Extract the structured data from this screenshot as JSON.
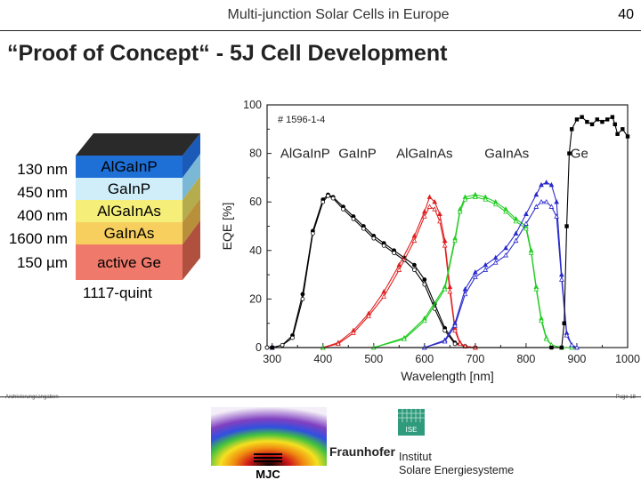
{
  "header": {
    "title": "Multi-junction Solar Cells in Europe",
    "page_number": "40"
  },
  "slide": {
    "title": "“Proof of Concept“ - 5J Cell Development"
  },
  "cell_stack": {
    "layers": [
      {
        "thickness": "130 nm",
        "material": "AlGaInP",
        "color": "#1e6fd6"
      },
      {
        "thickness": "450 nm",
        "material": "GaInP",
        "color": "#cfeefa"
      },
      {
        "thickness": "400 nm",
        "material": "AlGaInAs",
        "color": "#f5ef7a"
      },
      {
        "thickness": "1600 nm",
        "material": "GaInAs",
        "color": "#f7cf5e"
      },
      {
        "thickness": "150 µm",
        "material": "active Ge",
        "color": "#ef7a6c"
      }
    ],
    "caption": "1117-quint"
  },
  "chart_data": {
    "type": "line",
    "sample_label": "# 1596-1-4",
    "xlabel": "Wavelength [nm]",
    "ylabel": "EQE [%]",
    "xlim": [
      290,
      1000
    ],
    "ylim": [
      0,
      100
    ],
    "x_ticks": [
      300,
      400,
      500,
      600,
      700,
      800,
      900,
      1000
    ],
    "y_ticks": [
      0,
      20,
      40,
      60,
      80,
      100
    ],
    "grid": false,
    "junction_labels": [
      {
        "text": "AlGaInP",
        "x": 365,
        "y": 80
      },
      {
        "text": "GaInP",
        "x": 468,
        "y": 80
      },
      {
        "text": "AlGaInAs",
        "x": 600,
        "y": 80
      },
      {
        "text": "GaInAs",
        "x": 762,
        "y": 80
      },
      {
        "text": "Ge",
        "x": 905,
        "y": 80
      }
    ],
    "series": [
      {
        "color": "#000000",
        "marker": "circle",
        "x": [
          290,
          300,
          320,
          340,
          360,
          380,
          400,
          410,
          420,
          440,
          460,
          480,
          500,
          520,
          540,
          560,
          580,
          600,
          620,
          640,
          660,
          680,
          700
        ],
        "y": [
          0,
          0,
          1,
          5,
          22,
          48,
          61,
          63,
          62,
          58,
          54,
          50,
          46,
          43,
          40,
          37,
          34,
          28,
          18,
          8,
          2,
          0.5,
          0
        ]
      },
      {
        "color": "#000000",
        "marker": "circle-open",
        "x": [
          290,
          300,
          320,
          340,
          360,
          380,
          400,
          410,
          420,
          440,
          460,
          480,
          500,
          520,
          540,
          560,
          580,
          600,
          620,
          640,
          660,
          680,
          700
        ],
        "y": [
          0,
          0,
          1,
          4,
          20,
          47,
          60,
          62.5,
          61.5,
          57,
          53,
          49,
          45,
          42,
          39,
          36,
          32,
          26,
          16,
          7,
          1.5,
          0.5,
          0
        ]
      },
      {
        "color": "#e02020",
        "marker": "triangle",
        "x": [
          300,
          400,
          430,
          460,
          490,
          520,
          550,
          580,
          600,
          610,
          620,
          630,
          640,
          650,
          660,
          670,
          680,
          700
        ],
        "y": [
          0,
          0,
          2,
          7,
          14,
          23,
          34,
          46,
          56,
          62,
          60,
          55,
          44,
          25,
          8,
          2,
          0.5,
          0
        ]
      },
      {
        "color": "#e02020",
        "marker": "triangle-open",
        "x": [
          300,
          400,
          430,
          460,
          490,
          520,
          550,
          580,
          600,
          610,
          620,
          630,
          640,
          650,
          660,
          670,
          680,
          700
        ],
        "y": [
          0,
          0,
          1.5,
          6,
          13,
          21,
          32,
          44,
          54,
          58,
          57,
          52,
          42,
          23,
          7,
          1.5,
          0.5,
          0
        ]
      },
      {
        "color": "#22cc22",
        "marker": "triangle",
        "x": [
          400,
          500,
          560,
          600,
          640,
          660,
          670,
          680,
          700,
          720,
          740,
          760,
          780,
          800,
          810,
          820,
          830,
          840,
          850,
          870,
          890
        ],
        "y": [
          0,
          0,
          4,
          12,
          25,
          45,
          57,
          62,
          63,
          62,
          60,
          57,
          53,
          50,
          40,
          25,
          12,
          4,
          1,
          0,
          0
        ]
      },
      {
        "color": "#22cc22",
        "marker": "triangle-open",
        "x": [
          400,
          500,
          560,
          600,
          640,
          660,
          670,
          680,
          700,
          720,
          740,
          760,
          780,
          800,
          810,
          820,
          830,
          840,
          850,
          870,
          890
        ],
        "y": [
          0,
          0,
          3.5,
          11,
          24,
          44,
          56,
          61,
          62,
          61,
          59,
          56,
          52,
          49,
          39,
          24,
          11,
          3.5,
          1,
          0,
          0
        ]
      },
      {
        "color": "#2a2acc",
        "marker": "triangle",
        "x": [
          300,
          600,
          640,
          660,
          680,
          700,
          720,
          740,
          760,
          780,
          800,
          820,
          830,
          840,
          850,
          860,
          870,
          880,
          890,
          900
        ],
        "y": [
          0,
          0,
          3,
          10,
          24,
          31,
          34,
          37,
          41,
          47,
          55,
          63,
          67,
          68,
          67,
          60,
          30,
          6,
          1,
          0
        ]
      },
      {
        "color": "#2a2acc",
        "marker": "triangle-open",
        "x": [
          300,
          600,
          640,
          660,
          680,
          700,
          720,
          740,
          760,
          780,
          800,
          820,
          830,
          840,
          850,
          860,
          870,
          880,
          890,
          900
        ],
        "y": [
          0,
          0,
          2.5,
          9,
          22,
          29,
          32,
          35,
          38,
          44,
          51,
          58,
          60,
          60,
          58,
          54,
          28,
          5,
          1,
          0
        ]
      },
      {
        "color": "#000000",
        "marker": "square",
        "x": [
          300,
          850,
          870,
          875,
          880,
          885,
          890,
          900,
          910,
          920,
          930,
          940,
          950,
          960,
          970,
          975,
          980,
          990,
          1000
        ],
        "y": [
          0,
          0,
          0,
          10,
          50,
          80,
          90,
          94,
          95,
          93,
          92,
          94,
          93,
          94,
          95,
          92,
          88,
          90,
          87
        ]
      }
    ]
  },
  "footer": {
    "left_text": "Archivierungsangaben",
    "right_text": "Page 18"
  },
  "logos": {
    "fraunhofer": "Fraunhofer",
    "ise": "ISE",
    "institute_line1": "Institut",
    "institute_line2": "Solare Energiesysteme",
    "mjc": "MJC"
  }
}
